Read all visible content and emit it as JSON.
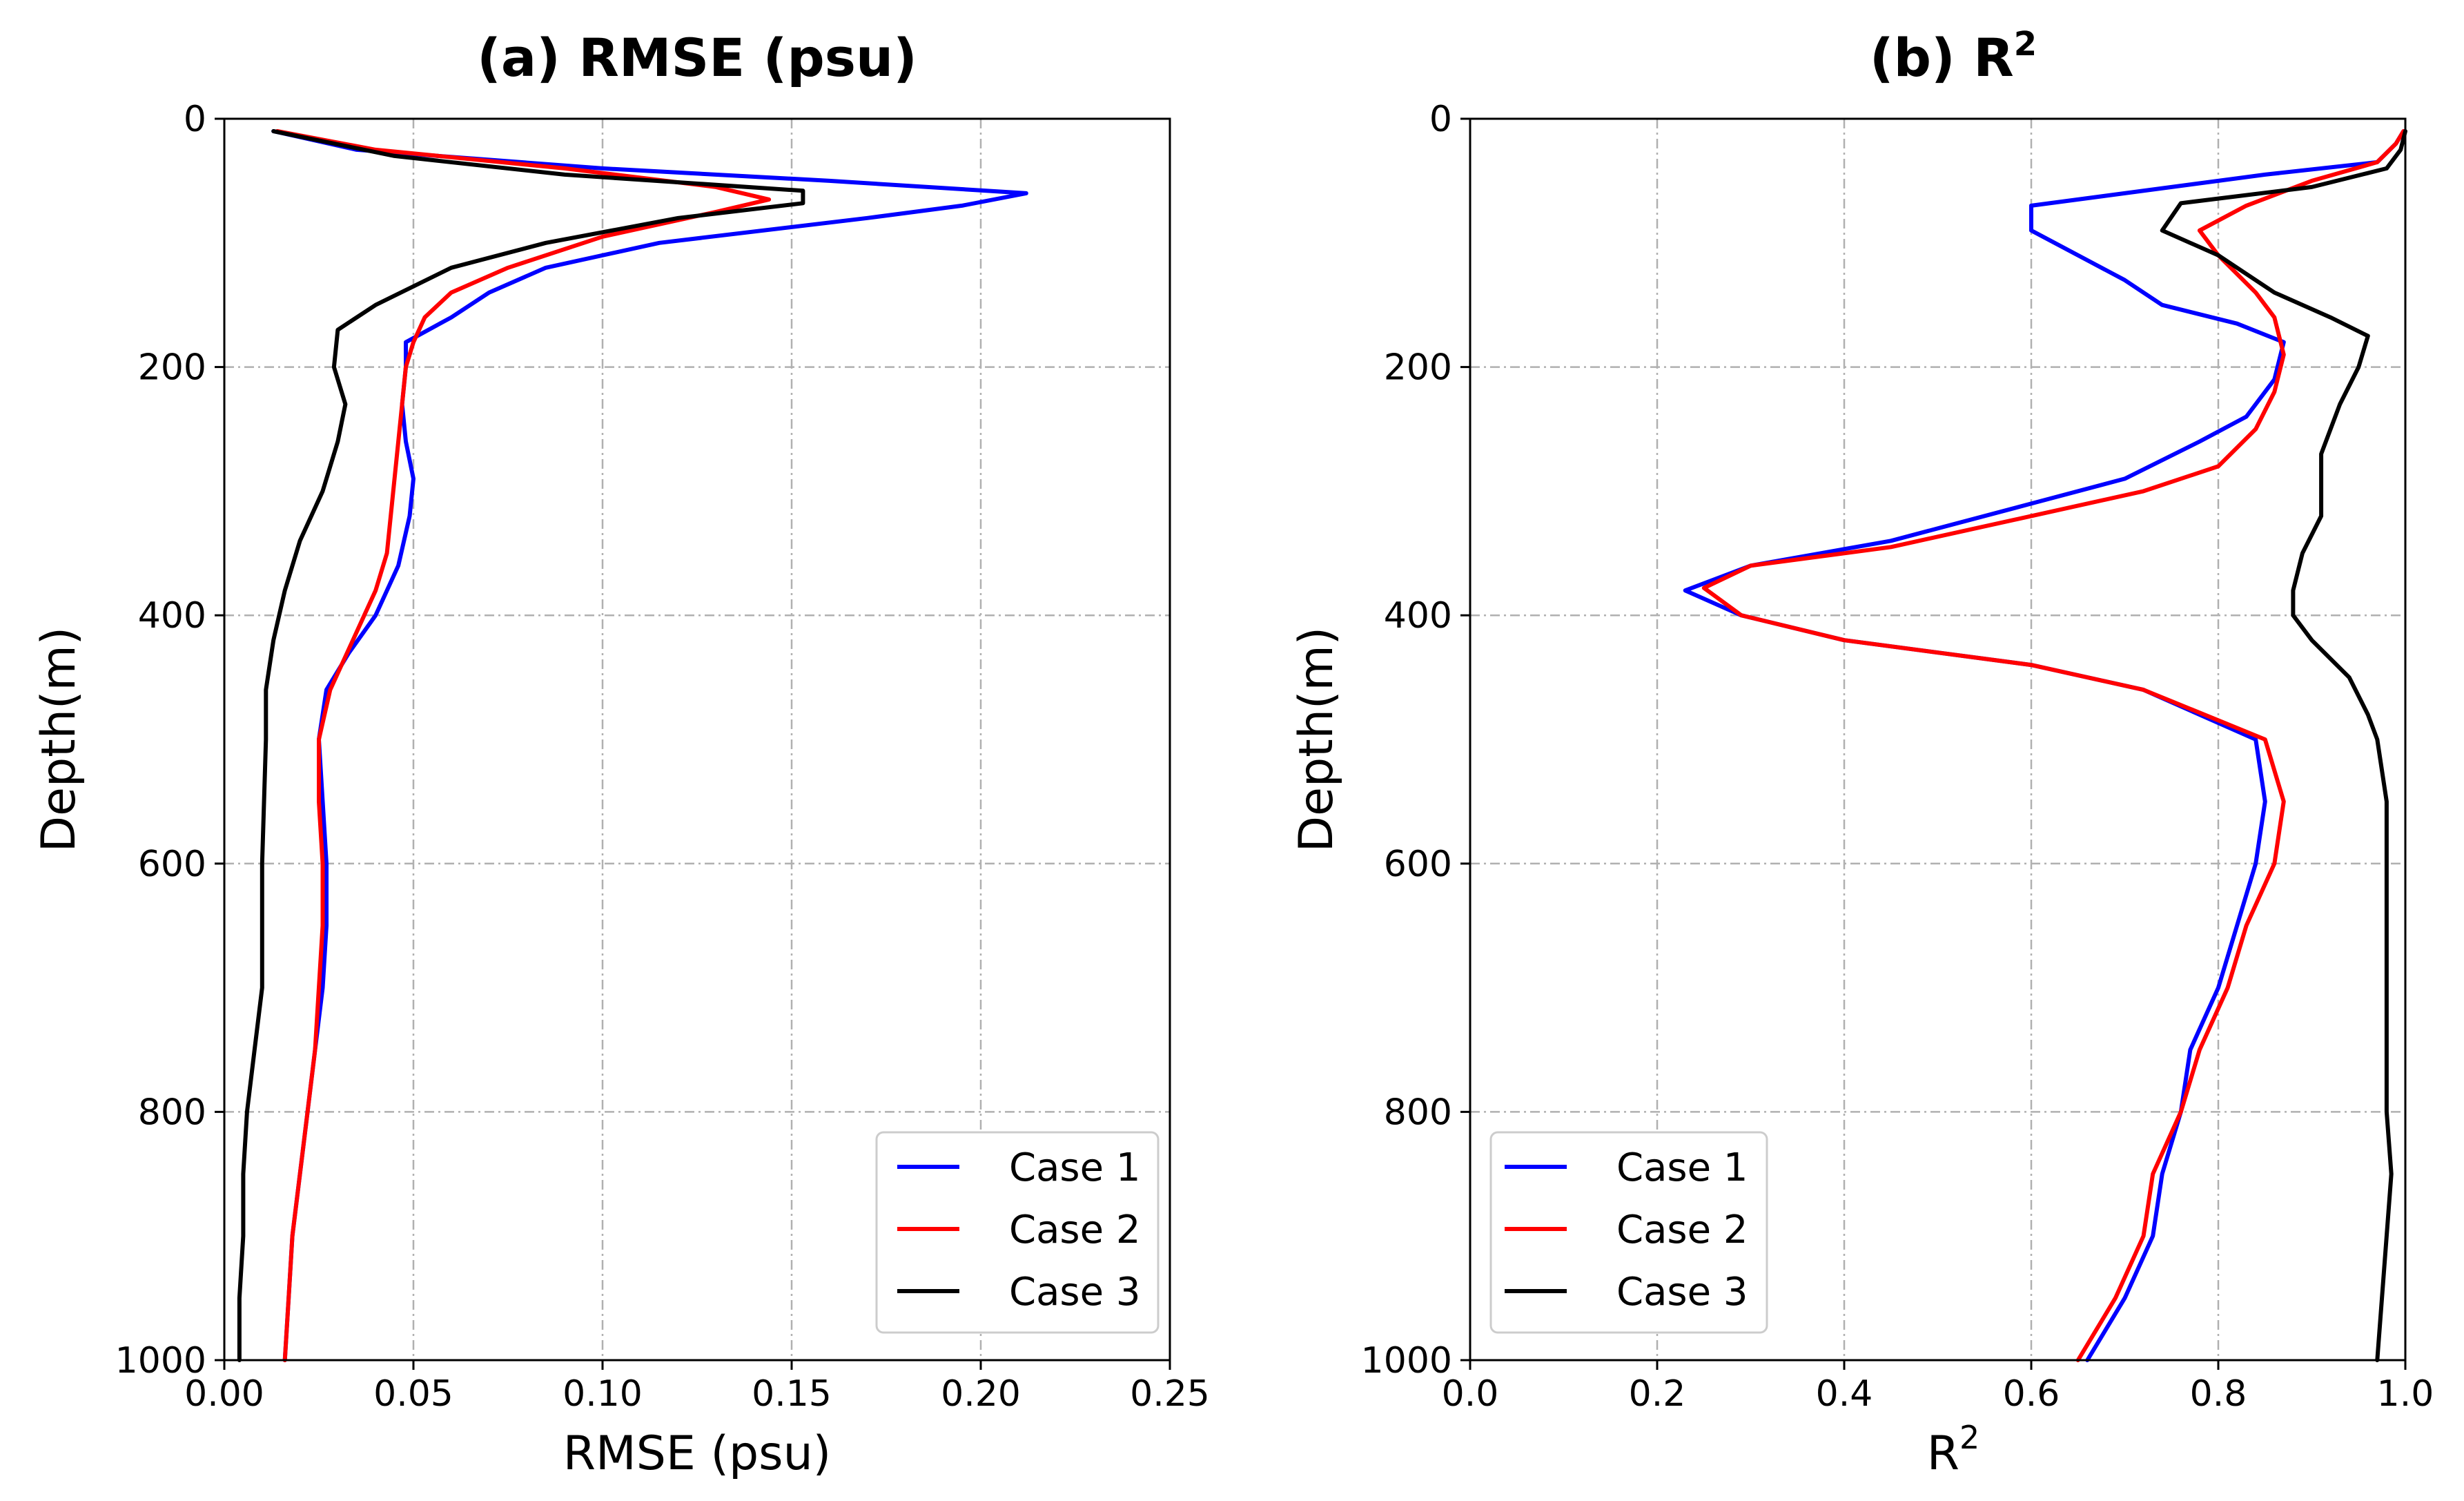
{
  "chart_data": [
    {
      "type": "line",
      "title": "(a) RMSE (psu)",
      "xlabel": "RMSE (psu)",
      "ylabel": "Depth(m)",
      "xlim": [
        0,
        0.25
      ],
      "ylim": [
        1000,
        0
      ],
      "xticks": [
        "0.00",
        "0.05",
        "0.10",
        "0.15",
        "0.20",
        "0.25"
      ],
      "yticks": [
        "0",
        "200",
        "400",
        "600",
        "800",
        "1000"
      ],
      "xtick_values": [
        0,
        0.05,
        0.1,
        0.15,
        0.2,
        0.25
      ],
      "ytick_values": [
        0,
        200,
        400,
        600,
        800,
        1000
      ],
      "grid": true,
      "legend": "lower-right",
      "series": [
        {
          "name": "Case 1",
          "color": "#0000ff",
          "points": [
            [
              0.013,
              10
            ],
            [
              0.035,
              25
            ],
            [
              0.1,
              40
            ],
            [
              0.16,
              50
            ],
            [
              0.212,
              60
            ],
            [
              0.195,
              70
            ],
            [
              0.17,
              80
            ],
            [
              0.115,
              100
            ],
            [
              0.085,
              120
            ],
            [
              0.07,
              140
            ],
            [
              0.06,
              160
            ],
            [
              0.048,
              180
            ],
            [
              0.048,
              200
            ],
            [
              0.047,
              230
            ],
            [
              0.048,
              260
            ],
            [
              0.05,
              290
            ],
            [
              0.049,
              320
            ],
            [
              0.046,
              360
            ],
            [
              0.04,
              400
            ],
            [
              0.033,
              430
            ],
            [
              0.027,
              460
            ],
            [
              0.025,
              500
            ],
            [
              0.026,
              550
            ],
            [
              0.027,
              600
            ],
            [
              0.027,
              650
            ],
            [
              0.026,
              700
            ],
            [
              0.024,
              750
            ],
            [
              0.022,
              800
            ],
            [
              0.02,
              850
            ],
            [
              0.018,
              900
            ],
            [
              0.017,
              950
            ],
            [
              0.016,
              1000
            ]
          ]
        },
        {
          "name": "Case 2",
          "color": "#ff0000",
          "points": [
            [
              0.014,
              10
            ],
            [
              0.04,
              25
            ],
            [
              0.09,
              40
            ],
            [
              0.13,
              55
            ],
            [
              0.144,
              65
            ],
            [
              0.13,
              75
            ],
            [
              0.1,
              95
            ],
            [
              0.075,
              120
            ],
            [
              0.06,
              140
            ],
            [
              0.053,
              160
            ],
            [
              0.05,
              180
            ],
            [
              0.048,
              200
            ],
            [
              0.047,
              230
            ],
            [
              0.046,
              260
            ],
            [
              0.045,
              290
            ],
            [
              0.044,
              320
            ],
            [
              0.043,
              350
            ],
            [
              0.04,
              380
            ],
            [
              0.034,
              420
            ],
            [
              0.028,
              460
            ],
            [
              0.025,
              500
            ],
            [
              0.025,
              550
            ],
            [
              0.026,
              600
            ],
            [
              0.026,
              650
            ],
            [
              0.025,
              700
            ],
            [
              0.024,
              750
            ],
            [
              0.022,
              800
            ],
            [
              0.02,
              850
            ],
            [
              0.018,
              900
            ],
            [
              0.017,
              950
            ],
            [
              0.016,
              1000
            ]
          ]
        },
        {
          "name": "Case 3",
          "color": "#000000",
          "points": [
            [
              0.013,
              10
            ],
            [
              0.045,
              30
            ],
            [
              0.09,
              45
            ],
            [
              0.153,
              58
            ],
            [
              0.153,
              68
            ],
            [
              0.12,
              80
            ],
            [
              0.085,
              100
            ],
            [
              0.06,
              120
            ],
            [
              0.04,
              150
            ],
            [
              0.03,
              170
            ],
            [
              0.029,
              200
            ],
            [
              0.032,
              230
            ],
            [
              0.03,
              260
            ],
            [
              0.026,
              300
            ],
            [
              0.02,
              340
            ],
            [
              0.016,
              380
            ],
            [
              0.013,
              420
            ],
            [
              0.011,
              460
            ],
            [
              0.011,
              500
            ],
            [
              0.01,
              600
            ],
            [
              0.01,
              700
            ],
            [
              0.008,
              750
            ],
            [
              0.006,
              800
            ],
            [
              0.005,
              850
            ],
            [
              0.005,
              900
            ],
            [
              0.004,
              950
            ],
            [
              0.004,
              1000
            ]
          ]
        }
      ]
    },
    {
      "type": "line",
      "title": "(b) R",
      "title_sup": "2",
      "xlabel": "R",
      "xlabel_sup": "2",
      "ylabel": "Depth(m)",
      "xlim": [
        0,
        1.0
      ],
      "ylim": [
        1000,
        0
      ],
      "xticks": [
        "0.0",
        "0.2",
        "0.4",
        "0.6",
        "0.8",
        "1.0"
      ],
      "yticks": [
        "0",
        "200",
        "400",
        "600",
        "800",
        "1000"
      ],
      "xtick_values": [
        0,
        0.2,
        0.4,
        0.6,
        0.8,
        1.0
      ],
      "ytick_values": [
        0,
        200,
        400,
        600,
        800,
        1000
      ],
      "grid": true,
      "legend": "lower-left",
      "series": [
        {
          "name": "Case 1",
          "color": "#0000ff",
          "points": [
            [
              0.998,
              10
            ],
            [
              0.99,
              20
            ],
            [
              0.97,
              35
            ],
            [
              0.85,
              45
            ],
            [
              0.7,
              60
            ],
            [
              0.6,
              70
            ],
            [
              0.6,
              90
            ],
            [
              0.7,
              130
            ],
            [
              0.74,
              150
            ],
            [
              0.82,
              165
            ],
            [
              0.87,
              180
            ],
            [
              0.86,
              210
            ],
            [
              0.83,
              240
            ],
            [
              0.78,
              260
            ],
            [
              0.7,
              290
            ],
            [
              0.6,
              310
            ],
            [
              0.45,
              340
            ],
            [
              0.3,
              360
            ],
            [
              0.23,
              380
            ],
            [
              0.29,
              400
            ],
            [
              0.4,
              420
            ],
            [
              0.6,
              440
            ],
            [
              0.72,
              460
            ],
            [
              0.84,
              500
            ],
            [
              0.85,
              550
            ],
            [
              0.84,
              600
            ],
            [
              0.82,
              650
            ],
            [
              0.8,
              700
            ],
            [
              0.77,
              750
            ],
            [
              0.76,
              800
            ],
            [
              0.74,
              850
            ],
            [
              0.73,
              900
            ],
            [
              0.7,
              950
            ],
            [
              0.66,
              1000
            ]
          ]
        },
        {
          "name": "Case 2",
          "color": "#ff0000",
          "points": [
            [
              0.998,
              10
            ],
            [
              0.99,
              20
            ],
            [
              0.97,
              35
            ],
            [
              0.9,
              50
            ],
            [
              0.83,
              70
            ],
            [
              0.78,
              90
            ],
            [
              0.8,
              110
            ],
            [
              0.84,
              140
            ],
            [
              0.86,
              160
            ],
            [
              0.87,
              190
            ],
            [
              0.86,
              220
            ],
            [
              0.84,
              250
            ],
            [
              0.8,
              280
            ],
            [
              0.72,
              300
            ],
            [
              0.6,
              320
            ],
            [
              0.45,
              345
            ],
            [
              0.3,
              360
            ],
            [
              0.25,
              378
            ],
            [
              0.29,
              400
            ],
            [
              0.4,
              420
            ],
            [
              0.6,
              440
            ],
            [
              0.72,
              460
            ],
            [
              0.85,
              500
            ],
            [
              0.87,
              550
            ],
            [
              0.86,
              600
            ],
            [
              0.83,
              650
            ],
            [
              0.81,
              700
            ],
            [
              0.78,
              750
            ],
            [
              0.76,
              800
            ],
            [
              0.73,
              850
            ],
            [
              0.72,
              900
            ],
            [
              0.69,
              950
            ],
            [
              0.65,
              1000
            ]
          ]
        },
        {
          "name": "Case 3",
          "color": "#000000",
          "points": [
            [
              1.0,
              10
            ],
            [
              0.995,
              25
            ],
            [
              0.98,
              40
            ],
            [
              0.9,
              55
            ],
            [
              0.76,
              68
            ],
            [
              0.74,
              90
            ],
            [
              0.8,
              110
            ],
            [
              0.86,
              140
            ],
            [
              0.92,
              160
            ],
            [
              0.96,
              175
            ],
            [
              0.95,
              200
            ],
            [
              0.93,
              230
            ],
            [
              0.91,
              270
            ],
            [
              0.91,
              320
            ],
            [
              0.89,
              350
            ],
            [
              0.88,
              380
            ],
            [
              0.88,
              400
            ],
            [
              0.9,
              420
            ],
            [
              0.94,
              450
            ],
            [
              0.96,
              480
            ],
            [
              0.97,
              500
            ],
            [
              0.98,
              550
            ],
            [
              0.98,
              600
            ],
            [
              0.98,
              700
            ],
            [
              0.98,
              800
            ],
            [
              0.985,
              850
            ],
            [
              0.98,
              900
            ],
            [
              0.975,
              950
            ],
            [
              0.97,
              1000
            ]
          ]
        }
      ]
    }
  ]
}
